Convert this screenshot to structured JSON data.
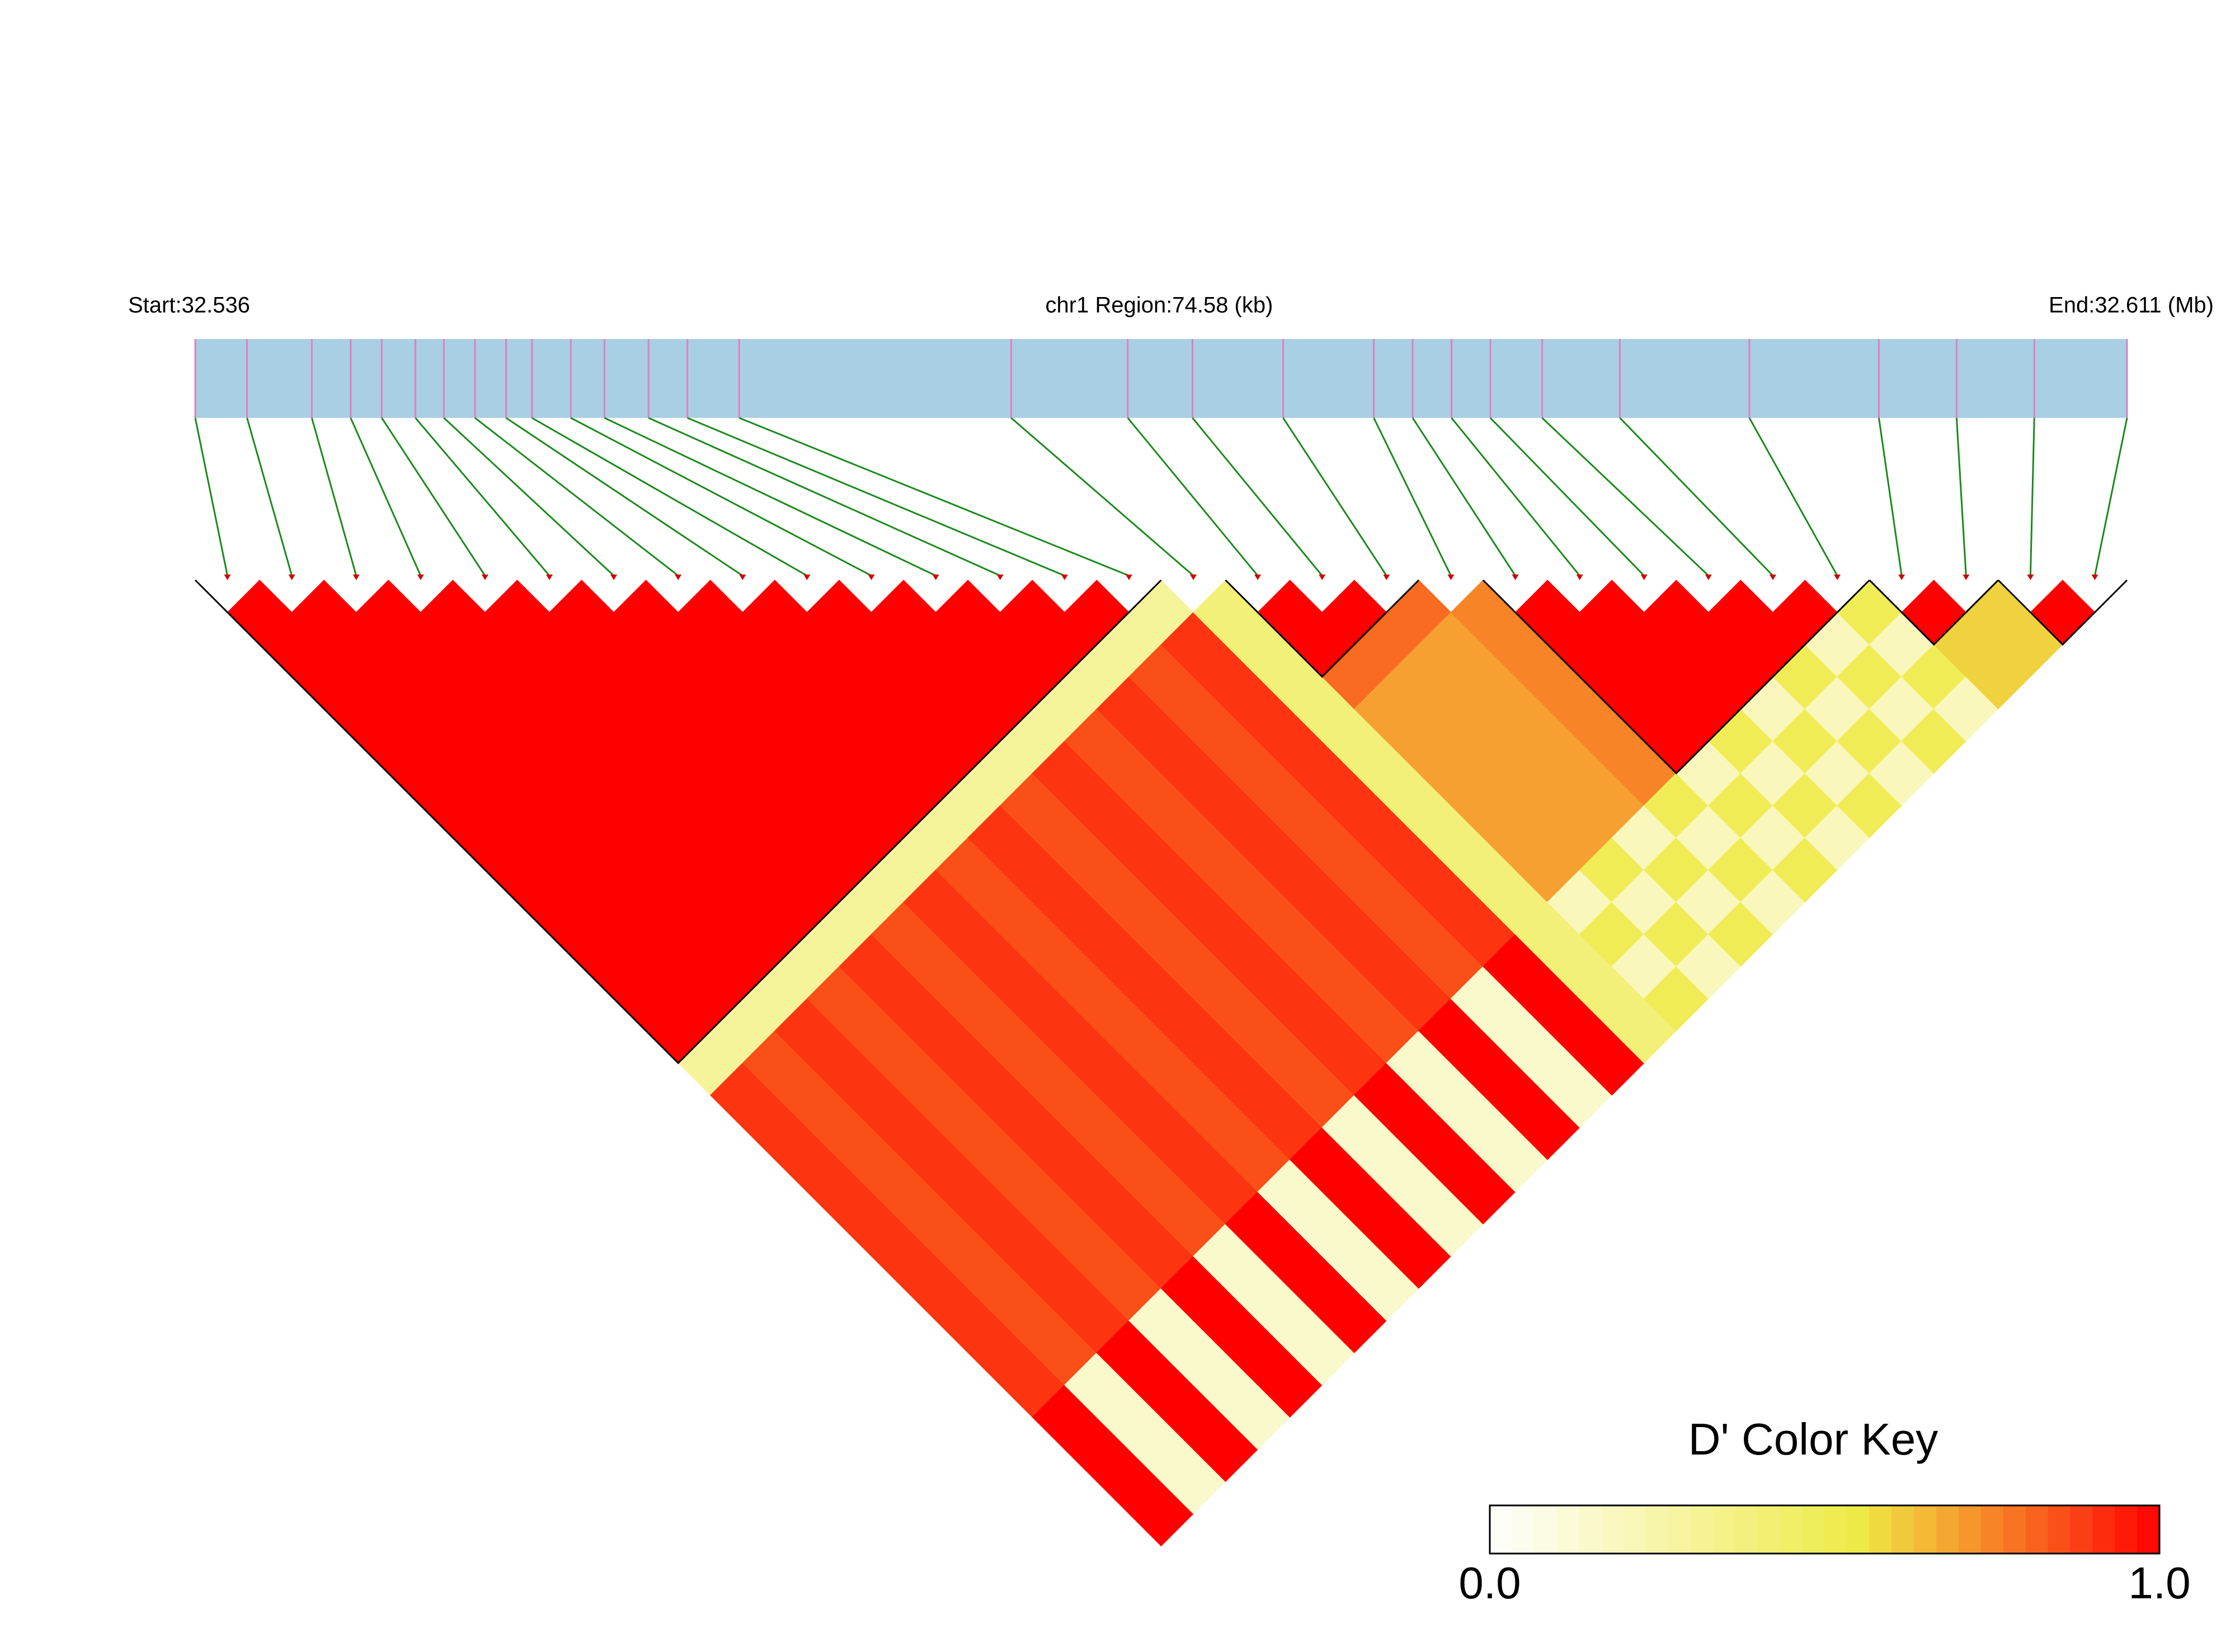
{
  "chart_data": {
    "type": "ld_heatmap",
    "start_label": "Start:32.536",
    "region_label": "chr1 Region:74.58 (kb)",
    "end_label": "End:32.611 (Mb)",
    "xlim": [
      0,
      74.58
    ],
    "positions": [
      0,
      2.0,
      4.5,
      6.0,
      7.2,
      8.5,
      9.6,
      10.8,
      12.0,
      13.0,
      14.5,
      15.8,
      17.5,
      19.0,
      21.0,
      31.5,
      36.0,
      38.5,
      42.0,
      45.5,
      47.0,
      48.5,
      50.0,
      52.0,
      55.0,
      60.0,
      65.0,
      68.0,
      71.0,
      74.58
    ],
    "ld_rows": [
      [
        1,
        1,
        1,
        1,
        1,
        1,
        1,
        1,
        1,
        1,
        1,
        1,
        1,
        1,
        0.3,
        0.9,
        0.9,
        0.9,
        0.9,
        0.9,
        0.9,
        0.9,
        0.9,
        0.9,
        0.9,
        1,
        1,
        1,
        1
      ],
      [
        1,
        1,
        1,
        1,
        1,
        1,
        1,
        1,
        1,
        1,
        1,
        1,
        1,
        0.3,
        0.85,
        0.85,
        0.85,
        0.85,
        0.85,
        0.85,
        0.85,
        0.85,
        0.85,
        0.85,
        0.15,
        0.15,
        0.15,
        0.15
      ],
      [
        1,
        1,
        1,
        1,
        1,
        1,
        1,
        1,
        1,
        1,
        1,
        1,
        0.3,
        0.9,
        0.9,
        0.9,
        0.9,
        0.9,
        0.9,
        0.9,
        0.9,
        0.9,
        0.9,
        1,
        1,
        1,
        1
      ],
      [
        1,
        1,
        1,
        1,
        1,
        1,
        1,
        1,
        1,
        1,
        1,
        0.3,
        0.85,
        0.85,
        0.85,
        0.85,
        0.85,
        0.85,
        0.85,
        0.85,
        0.85,
        0.85,
        0.15,
        0.15,
        0.15,
        0.15
      ],
      [
        1,
        1,
        1,
        1,
        1,
        1,
        1,
        1,
        1,
        1,
        0.3,
        0.9,
        0.9,
        0.9,
        0.9,
        0.9,
        0.9,
        0.9,
        0.9,
        0.9,
        0.9,
        1,
        1,
        1,
        1
      ],
      [
        1,
        1,
        1,
        1,
        1,
        1,
        1,
        1,
        1,
        0.3,
        0.85,
        0.85,
        0.85,
        0.85,
        0.85,
        0.85,
        0.85,
        0.85,
        0.85,
        0.85,
        0.15,
        0.15,
        0.15,
        0.15
      ],
      [
        1,
        1,
        1,
        1,
        1,
        1,
        1,
        1,
        0.3,
        0.9,
        0.9,
        0.9,
        0.9,
        0.9,
        0.9,
        0.9,
        0.9,
        0.9,
        0.9,
        1,
        1,
        1,
        1
      ],
      [
        1,
        1,
        1,
        1,
        1,
        1,
        1,
        0.3,
        0.85,
        0.85,
        0.85,
        0.85,
        0.85,
        0.85,
        0.85,
        0.85,
        0.85,
        0.85,
        0.15,
        0.15,
        0.15,
        0.15
      ],
      [
        1,
        1,
        1,
        1,
        1,
        1,
        0.3,
        0.9,
        0.9,
        0.9,
        0.9,
        0.9,
        0.9,
        0.9,
        0.9,
        0.9,
        0.9,
        1,
        1,
        1,
        1
      ],
      [
        1,
        1,
        1,
        1,
        1,
        0.3,
        0.85,
        0.85,
        0.85,
        0.85,
        0.85,
        0.85,
        0.85,
        0.85,
        0.85,
        0.85,
        0.15,
        0.15,
        0.15,
        0.15
      ],
      [
        1,
        1,
        1,
        1,
        0.3,
        0.9,
        0.9,
        0.9,
        0.9,
        0.9,
        0.9,
        0.9,
        0.9,
        0.9,
        0.9,
        1,
        1,
        1,
        1
      ],
      [
        1,
        1,
        1,
        0.3,
        0.85,
        0.85,
        0.85,
        0.85,
        0.85,
        0.85,
        0.85,
        0.85,
        0.85,
        0.85,
        0.15,
        0.15,
        0.15,
        0.15
      ],
      [
        1,
        1,
        0.3,
        0.9,
        0.9,
        0.9,
        0.9,
        0.9,
        0.9,
        0.9,
        0.9,
        0.9,
        0.9,
        1,
        1,
        1,
        1
      ],
      [
        1,
        0.3,
        0.85,
        0.85,
        0.85,
        0.85,
        0.85,
        0.85,
        0.85,
        0.85,
        0.85,
        0.85,
        0.15,
        0.15,
        0.15,
        0.15
      ],
      [
        0.3,
        0.9,
        0.9,
        0.9,
        0.9,
        0.9,
        0.9,
        0.9,
        0.9,
        0.9,
        0.9,
        1,
        1,
        1,
        1
      ],
      [
        0.4,
        0.4,
        0.4,
        0.4,
        0.4,
        0.4,
        0.4,
        0.4,
        0.4,
        0.4,
        0.4,
        0.4,
        0.4,
        0.4
      ],
      [
        1,
        1,
        0.8,
        0.7,
        0.7,
        0.7,
        0.7,
        0.7,
        0.7,
        0.2,
        0.5,
        0.2,
        0.5
      ],
      [
        1,
        0.8,
        0.7,
        0.7,
        0.7,
        0.7,
        0.7,
        0.7,
        0.5,
        0.2,
        0.5,
        0.2
      ],
      [
        0.8,
        0.7,
        0.7,
        0.7,
        0.7,
        0.7,
        0.7,
        0.2,
        0.5,
        0.2,
        0.5
      ],
      [
        0.75,
        0.75,
        0.75,
        0.75,
        0.75,
        0.75,
        0.5,
        0.2,
        0.5,
        0.2
      ],
      [
        1,
        1,
        1,
        1,
        1,
        0.2,
        0.5,
        0.2,
        0.5
      ],
      [
        1,
        1,
        1,
        1,
        0.5,
        0.2,
        0.5,
        0.2
      ],
      [
        1,
        1,
        1,
        0.2,
        0.5,
        0.2,
        0.5
      ],
      [
        1,
        1,
        0.5,
        0.2,
        0.5,
        0.2
      ],
      [
        1,
        0.2,
        0.5,
        0.2,
        0.5
      ],
      [
        0.5,
        0.2,
        0.5,
        0.2
      ],
      [
        1,
        0.6,
        0.6
      ],
      [
        0.6,
        0.6
      ],
      [
        1
      ]
    ],
    "blocks": [
      [
        0,
        14
      ],
      [
        16,
        18
      ],
      [
        20,
        25
      ],
      [
        26,
        27
      ],
      [
        28,
        29
      ]
    ],
    "colorbar_title": "D' Color Key",
    "colorbar_ticks": [
      {
        "value": 0,
        "label": "0.0"
      },
      {
        "value": 1,
        "label": "1.0"
      }
    ],
    "color_stops": [
      {
        "value": 0,
        "color": "#ffffff"
      },
      {
        "value": 0.55,
        "color": "#eeea45"
      },
      {
        "value": 0.7,
        "color": "#f5a030"
      },
      {
        "value": 1,
        "color": "#ff0000"
      }
    ],
    "bar_color": "#a8cfe4",
    "snp_line_color": "#e07fc0",
    "link_color": "#1a8a1a"
  }
}
